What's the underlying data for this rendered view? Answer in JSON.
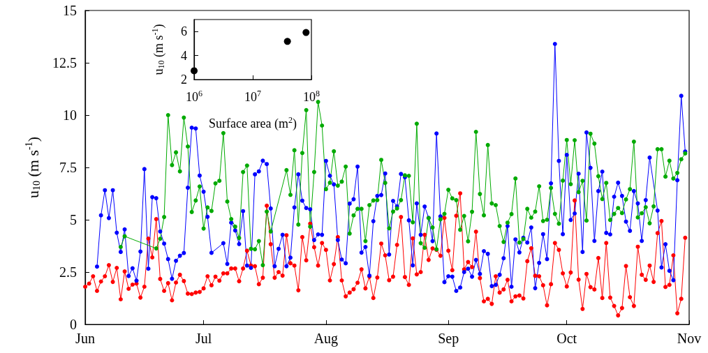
{
  "chart_data": [
    {
      "type": "line",
      "ylabel": "u$_{10}$ (m s$^{-1}$)",
      "marker": "circle",
      "xlim": [
        "--06-01",
        "--11-01"
      ],
      "xticks": [
        {
          "value": "--06-01",
          "label": "Jun"
        },
        {
          "value": "--07-01",
          "label": "Jul"
        },
        {
          "value": "--08-01",
          "label": "Aug"
        },
        {
          "value": "--09-01",
          "label": "Sep"
        },
        {
          "value": "--10-01",
          "label": "Oct"
        },
        {
          "value": "--11-01",
          "label": "Nov"
        }
      ],
      "ylim": [
        0,
        15
      ],
      "yticks": [
        0,
        2.5,
        5,
        7.5,
        10,
        12.5,
        15
      ],
      "x": [
        "--06-01",
        "--06-02",
        "--06-03",
        "--06-04",
        "--06-05",
        "--06-06",
        "--06-07",
        "--06-08",
        "--06-09",
        "--06-10",
        "--06-11",
        "--06-12",
        "--06-13",
        "--06-14",
        "--06-15",
        "--06-16",
        "--06-17",
        "--06-18",
        "--06-19",
        "--06-20",
        "--06-21",
        "--06-22",
        "--06-23",
        "--06-24",
        "--06-25",
        "--06-26",
        "--06-27",
        "--06-28",
        "--06-29",
        "--06-30",
        "--07-01",
        "--07-02",
        "--07-03",
        "--07-04",
        "--07-05",
        "--07-06",
        "--07-07",
        "--07-08",
        "--07-09",
        "--07-10",
        "--07-11",
        "--07-12",
        "--07-13",
        "--07-14",
        "--07-15",
        "--07-16",
        "--07-17",
        "--07-18",
        "--07-19",
        "--07-20",
        "--07-21",
        "--07-22",
        "--07-23",
        "--07-24",
        "--07-25",
        "--07-26",
        "--07-27",
        "--07-28",
        "--07-29",
        "--07-30",
        "--07-31",
        "--08-01",
        "--08-02",
        "--08-03",
        "--08-04",
        "--08-05",
        "--08-06",
        "--08-07",
        "--08-08",
        "--08-09",
        "--08-10",
        "--08-11",
        "--08-12",
        "--08-13",
        "--08-14",
        "--08-15",
        "--08-16",
        "--08-17",
        "--08-18",
        "--08-19",
        "--08-20",
        "--08-21",
        "--08-22",
        "--08-23",
        "--08-24",
        "--08-25",
        "--08-26",
        "--08-27",
        "--08-28",
        "--08-29",
        "--08-30",
        "--08-31",
        "--09-01",
        "--09-02",
        "--09-03",
        "--09-04",
        "--09-05",
        "--09-06",
        "--09-07",
        "--09-08",
        "--09-09",
        "--09-10",
        "--09-11",
        "--09-12",
        "--09-13",
        "--09-14",
        "--09-15",
        "--09-16",
        "--09-17",
        "--09-18",
        "--09-19",
        "--09-20",
        "--09-21",
        "--09-22",
        "--09-23",
        "--09-24",
        "--09-25",
        "--09-26",
        "--09-27",
        "--09-28",
        "--09-29",
        "--09-30",
        "--10-01",
        "--10-02",
        "--10-03",
        "--10-04",
        "--10-05",
        "--10-06",
        "--10-07",
        "--10-08",
        "--10-09",
        "--10-10",
        "--10-11",
        "--10-12",
        "--10-13",
        "--10-14",
        "--10-15",
        "--10-16",
        "--10-17",
        "--10-18",
        "--10-19",
        "--10-20",
        "--10-21",
        "--10-22",
        "--10-23",
        "--10-24",
        "--10-25",
        "--10-26",
        "--10-27",
        "--10-28",
        "--10-29",
        "--10-30",
        "--10-31"
      ],
      "series": [
        {
          "color": "#ff0000",
          "values": [
            1.8,
            1.95,
            2.3,
            1.6,
            2.05,
            2.3,
            2.83,
            2.03,
            2.7,
            1.2,
            2.53,
            1.7,
            1.9,
            1.95,
            1.28,
            1.8,
            4.1,
            3.2,
            5.03,
            2.17,
            1.6,
            1.97,
            1.15,
            2.0,
            2.37,
            2.07,
            1.47,
            1.45,
            1.52,
            1.55,
            1.72,
            2.3,
            1.87,
            2.28,
            2.09,
            2.44,
            2.44,
            2.67,
            2.67,
            2.06,
            2.67,
            3.52,
            2.81,
            2.78,
            1.92,
            2.23,
            5.67,
            3.83,
            2.23,
            2.5,
            2.33,
            4.26,
            2.92,
            2.81,
            1.63,
            4.17,
            3.06,
            4.81,
            3.69,
            2.81,
            3.89,
            3.56,
            2.1,
            2.88,
            4.17,
            2.1,
            1.34,
            1.52,
            1.68,
            1.99,
            2.63,
            1.72,
            2.28,
            1.26,
            2.24,
            3.86,
            3.3,
            2.11,
            2.28,
            3.8,
            5.13,
            2.26,
            1.89,
            4.11,
            2.39,
            2.5,
            4.28,
            3.08,
            3.63,
            3.56,
            3.28,
            5.09,
            3.52,
            2.59,
            5.19,
            6.26,
            2.63,
            2.98,
            2.74,
            4.43,
            2.21,
            1.1,
            1.22,
            0.98,
            2.3,
            1.52,
            1.67,
            2.13,
            1.1,
            1.34,
            1.38,
            1.24,
            3.02,
            3.64,
            2.32,
            2.3,
            1.87,
            0.91,
            1.92,
            3.89,
            3.56,
            2.44,
            1.81,
            2.48,
            5.92,
            2.14,
            0.74,
            2.41,
            1.78,
            1.67,
            3.17,
            1.26,
            3.89,
            1.28,
            0.88,
            0.43,
            0.78,
            2.79,
            1.3,
            0.88,
            3.71,
            2.37,
            2.13,
            2.81,
            2.03,
            4.36,
            4.94,
            1.79,
            1.89,
            3.3,
            0.53,
            1.22,
            4.14
          ]
        },
        {
          "color": "#0000ff",
          "values": [
            null,
            null,
            null,
            2.76,
            5.21,
            6.41,
            5.08,
            6.41,
            4.38,
            3.46,
            4.54,
            2.31,
            2.68,
            2.09,
            3.48,
            7.42,
            2.66,
            6.08,
            6.03,
            4.44,
            3.86,
            3.12,
            2.18,
            3.04,
            3.28,
            3.41,
            6.53,
            9.4,
            9.36,
            7.11,
            6.34,
            5.14,
            3.42,
            null,
            null,
            3.88,
            2.89,
            4.86,
            4.49,
            3.84,
            5.41,
            2.81,
            2.7,
            7.17,
            7.31,
            7.82,
            7.66,
            5.54,
            2.78,
            3.61,
            4.28,
            2.78,
            3.19,
            5.59,
            7.17,
            5.91,
            5.56,
            5.5,
            4.03,
            4.3,
            4.28,
            7.81,
            7.1,
            6.69,
            4.03,
            3.1,
            2.92,
            5.77,
            5.98,
            7.54,
            3.43,
            3.7,
            2.33,
            4.93,
            6.14,
            6.18,
            7.21,
            3.34,
            5.9,
            5.64,
            7.19,
            7.03,
            4.97,
            2.82,
            5.78,
            4.28,
            5.63,
            5.09,
            3.98,
            9.12,
            5.16,
            2.02,
            2.3,
            2.28,
            1.6,
            1.76,
            2.5,
            2.66,
            2.28,
            3.08,
            2.41,
            3.5,
            3.37,
            1.83,
            1.89,
            2.37,
            3.16,
            4.7,
            1.8,
            4.06,
            3.44,
            4.14,
            3.91,
            4.63,
            1.73,
            2.94,
            4.31,
            3.12,
            6.74,
            13.4,
            7.81,
            4.31,
            8.1,
            4.99,
            5.3,
            7.2,
            3.46,
            9.17,
            7.48,
            3.99,
            6.37,
            7.3,
            4.37,
            4.3,
            6.1,
            6.77,
            6.14,
            4.91,
            4.47,
            6.37,
            5.78,
            3.99,
            5.94,
            7.97,
            null,
            5.44,
            2.72,
            3.83,
            2.56,
            2.11,
            6.89,
            10.92,
            8.26
          ]
        },
        {
          "color": "#00aa00",
          "values": [
            null,
            null,
            null,
            null,
            null,
            null,
            null,
            null,
            null,
            3.7,
            4.21,
            null,
            null,
            null,
            null,
            null,
            null,
            null,
            3.63,
            4.09,
            5.13,
            10.0,
            7.61,
            8.22,
            7.31,
            9.88,
            8.5,
            5.37,
            5.92,
            6.59,
            4.58,
            5.59,
            5.42,
            6.74,
            6.86,
            9.14,
            5.87,
            5.03,
            4.67,
            4.13,
            7.28,
            7.59,
            3.61,
            3.59,
            3.98,
            2.83,
            5.39,
            4.44,
            null,
            null,
            null,
            7.37,
            6.19,
            8.32,
            4.77,
            8.19,
            10.24,
            4.67,
            7.28,
            10.63,
            9.5,
            6.46,
            6.77,
            8.27,
            6.63,
            6.82,
            7.54,
            4.34,
            5.21,
            5.52,
            5.52,
            3.98,
            5.7,
            5.92,
            5.94,
            7.86,
            6.76,
            4.59,
            5.39,
            5.54,
            5.94,
            7.12,
            7.1,
            4.88,
            9.59,
            3.88,
            3.66,
            5.08,
            4.63,
            3.59,
            5.02,
            5.28,
            6.43,
            6.02,
            5.94,
            4.52,
            5.18,
            3.97,
            5.38,
            9.2,
            6.23,
            5.21,
            8.57,
            5.78,
            5.7,
            4.7,
            3.94,
            4.86,
            5.27,
            6.97,
            3.91,
            4.08,
            5.52,
            5.1,
            5.39,
            6.6,
            4.94,
            5.0,
            6.52,
            5.28,
            4.81,
            6.87,
            8.81,
            6.7,
            8.8,
            6.32,
            6.86,
            4.96,
            9.11,
            8.64,
            7.08,
            5.99,
            6.76,
            4.99,
            5.28,
            5.56,
            5.32,
            5.97,
            6.46,
            8.73,
            5.11,
            5.31,
            5.6,
            4.83,
            5.64,
            8.37,
            8.37,
            7.06,
            7.82,
            6.97,
            7.24,
            7.89,
            8.17
          ]
        }
      ]
    },
    {
      "type": "scatter",
      "xlabel": "Surface area (m$^{2}$)",
      "ylabel": "u$_{10}$ (m s$^{-1}$)",
      "marker": "circle",
      "log": "x",
      "xlim": [
        1000000,
        100000000
      ],
      "xticks": [
        {
          "value": 1000000,
          "label": "10$^{6}$"
        },
        {
          "value": 10000000,
          "label": "10$^{7}$"
        },
        {
          "value": 100000000,
          "label": "10$^{8}$"
        }
      ],
      "ylim": [
        2,
        7
      ],
      "yticks": [
        2,
        4,
        6
      ],
      "x": [
        1000000,
        39000000,
        81000000
      ],
      "values": [
        2.73,
        5.18,
        5.92
      ],
      "color": "#000000"
    }
  ]
}
